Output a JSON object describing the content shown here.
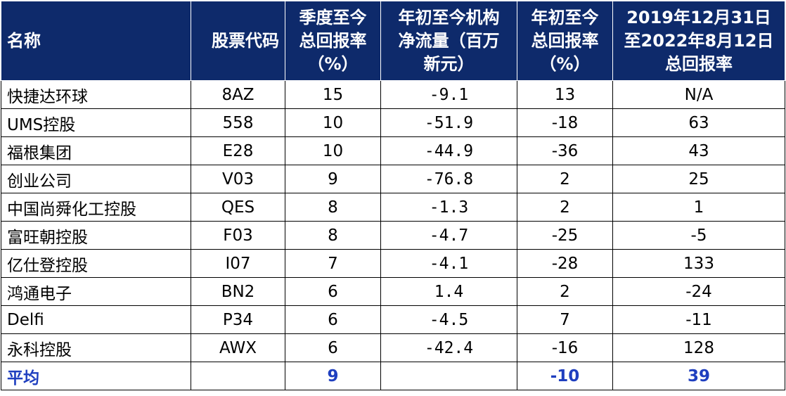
{
  "headers": [
    "名称",
    "股票代码",
    "季度至今\n总回报率\n（%）",
    "年初至今机构\n净流量（百万\n新元）",
    "年初至今\n总回报率\n（%）",
    "2019年12月31日\n至2022年8月12日\n总回报率"
  ],
  "rows": [
    {
      "name": "快捷达环球",
      "code": "8AZ",
      "qtd": "15",
      "flow": "-9.1",
      "ytd": "13",
      "since2019": "N/A"
    },
    {
      "name": "UMS控股",
      "code": "558",
      "qtd": "10",
      "flow": "-51.9",
      "ytd": "-18",
      "since2019": "63"
    },
    {
      "name": "福根集团",
      "code": "E28",
      "qtd": "10",
      "flow": "-44.9",
      "ytd": "-36",
      "since2019": "43"
    },
    {
      "name": "创业公司",
      "code": "V03",
      "qtd": "9",
      "flow": "-76.8",
      "ytd": "2",
      "since2019": "25"
    },
    {
      "name": "中国尚舜化工控股",
      "code": "QES",
      "qtd": "8",
      "flow": "-1.3",
      "ytd": "2",
      "since2019": "1"
    },
    {
      "name": "富旺朝控股",
      "code": "F03",
      "qtd": "8",
      "flow": "-4.7",
      "ytd": "-25",
      "since2019": "-5"
    },
    {
      "name": "亿仕登控股",
      "code": "I07",
      "qtd": "7",
      "flow": "-4.1",
      "ytd": "-28",
      "since2019": "133"
    },
    {
      "name": "鸿通电子",
      "code": "BN2",
      "qtd": "6",
      "flow": "1.4",
      "ytd": "2",
      "since2019": "-24"
    },
    {
      "name": "Delfi",
      "code": "P34",
      "qtd": "6",
      "flow": "-4.5",
      "ytd": "7",
      "since2019": "-11"
    },
    {
      "name": "永科控股",
      "code": "AWX",
      "qtd": "6",
      "flow": "-42.4",
      "ytd": "-16",
      "since2019": "128"
    }
  ],
  "average": {
    "name": "平均",
    "code": "",
    "qtd": "9",
    "flow": "",
    "ytd": "-10",
    "since2019": "39"
  },
  "colors": {
    "header_bg": "#0e2a6b",
    "header_text": "#ffffff",
    "average_text": "#1f3fbf"
  }
}
